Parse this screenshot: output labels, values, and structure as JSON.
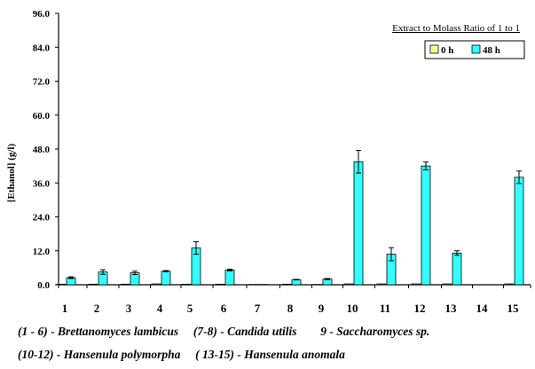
{
  "chart_data": {
    "type": "bar",
    "title": "",
    "annotation": "Extract to Molass Ratio of 1 to 1",
    "ylabel": "[Ethanol] (g/l)",
    "xlabel": "",
    "ylim": [
      0,
      96
    ],
    "yticks": [
      "0.0",
      "12.0",
      "24.0",
      "36.0",
      "48.0",
      "60.0",
      "72.0",
      "84.0",
      "96.0"
    ],
    "categories": [
      "1",
      "2",
      "3",
      "4",
      "5",
      "6",
      "7",
      "8",
      "9",
      "10",
      "11",
      "12",
      "13",
      "14",
      "15"
    ],
    "legend_position": "top-right",
    "grid": false,
    "series": [
      {
        "name": "0 h",
        "color": "#ffff99",
        "values": [
          0.2,
          0.2,
          0.2,
          0.3,
          0.2,
          0.2,
          0.1,
          0.2,
          0.1,
          0.3,
          0.3,
          0.3,
          0.3,
          0,
          0.3
        ],
        "errors": [
          0,
          0,
          0,
          0,
          0,
          0,
          0,
          0,
          0,
          0,
          0,
          0,
          0,
          0,
          0
        ]
      },
      {
        "name": "48 h",
        "color": "#33ffff",
        "values": [
          2.5,
          4.5,
          4.2,
          4.8,
          13.0,
          5.2,
          0.1,
          1.8,
          2.0,
          43.5,
          10.8,
          42.0,
          11.2,
          0,
          38.0
        ],
        "errors": [
          0.3,
          0.8,
          0.6,
          0.2,
          2.2,
          0.3,
          0,
          0.1,
          0.2,
          4.0,
          2.3,
          1.4,
          0.8,
          0,
          2.2
        ]
      }
    ]
  },
  "captions": {
    "line1_a": "(1 - 6) - Brettanomyces lambicus",
    "line1_b": "(7-8) - Candida utilis",
    "line1_c": "9 - Saccharomyces sp.",
    "line2_a": "(10-12) - Hansenula polymorpha",
    "line2_b": "( 13-15) - Hansenula anomala"
  }
}
